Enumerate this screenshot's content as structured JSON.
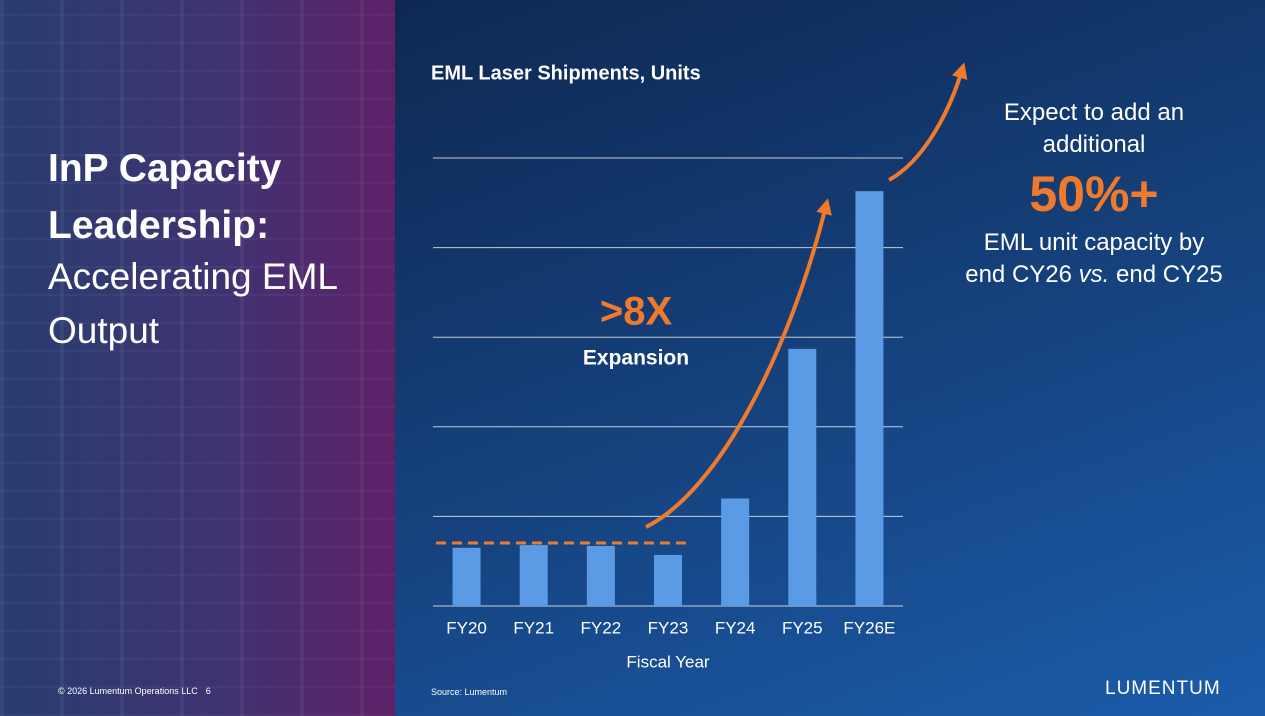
{
  "slide": {
    "title_bold": "InP Capacity Leadership:",
    "title_regular": "Accelerating EML Output",
    "footer": "© 2026 Lumentum Operations LLC",
    "page_number": "6",
    "source": "Source: Lumentum",
    "logo": "LUMENTUM",
    "callout": {
      "lead": "Expect to add an additional",
      "figure": "50%+",
      "tail_line1": "EML unit capacity by",
      "tail_a": "end CY26",
      "tail_italic": "vs.",
      "tail_b": "end CY25"
    }
  },
  "chart_data": {
    "type": "bar",
    "title": "EML Laser Shipments, Units",
    "x_label": "Fiscal Year",
    "categories": [
      "FY20",
      "FY21",
      "FY22",
      "FY23",
      "FY24",
      "FY25",
      "FY26E"
    ],
    "values": [
      0.65,
      0.68,
      0.67,
      0.57,
      1.2,
      2.87,
      4.63
    ],
    "color": "#5b9be6",
    "ylim": [
      0,
      5
    ],
    "yticks": [
      0,
      1,
      2,
      3,
      4,
      5
    ],
    "grid": true,
    "annotations": [
      ">8X",
      "Expansion"
    ]
  }
}
